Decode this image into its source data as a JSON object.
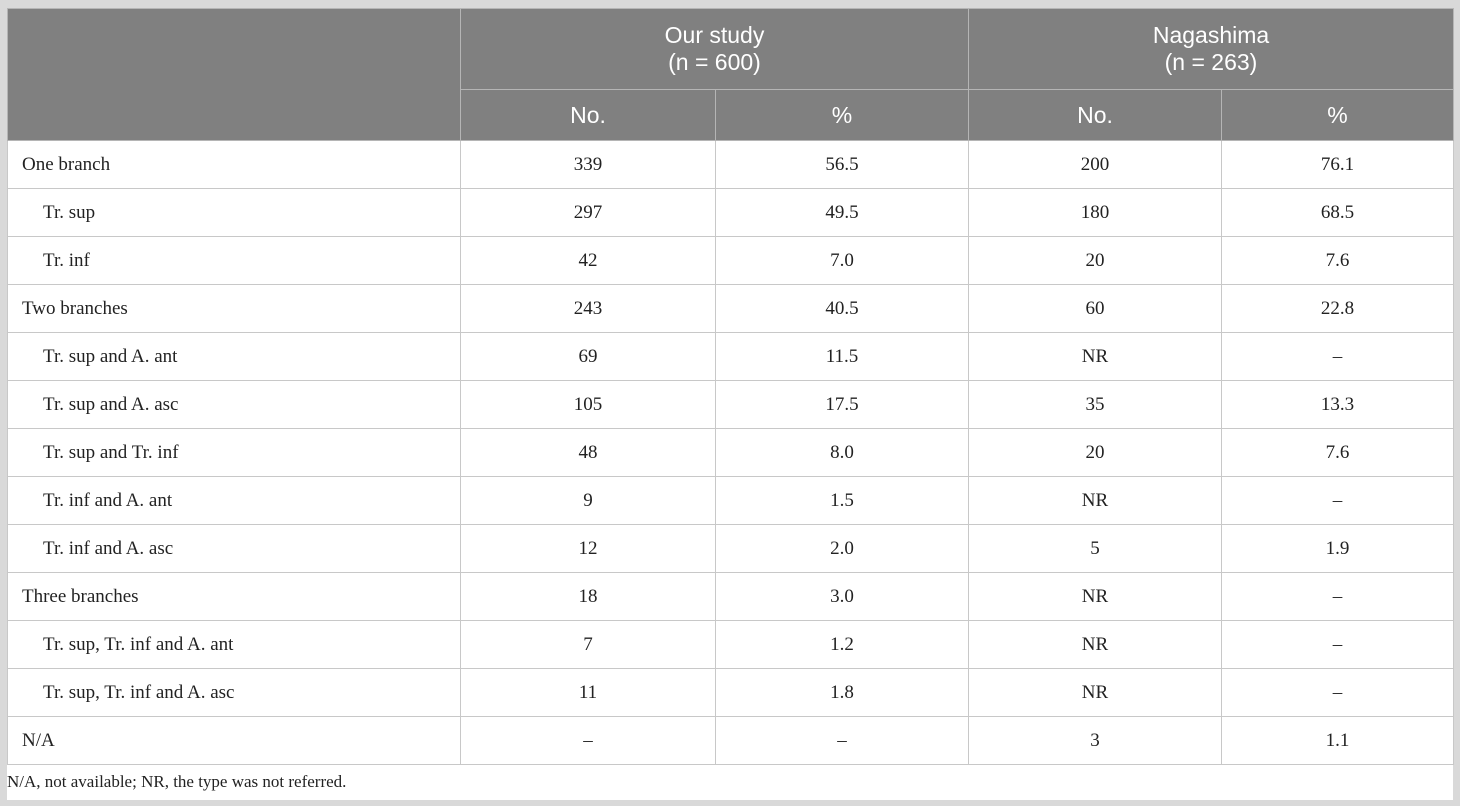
{
  "table": {
    "groups": [
      {
        "name": "Our study",
        "n": "(n = 600)"
      },
      {
        "name": "Nagashima",
        "n": "(n = 263)"
      }
    ],
    "subheaders": [
      "No.",
      "%",
      "No.",
      "%"
    ],
    "rows": [
      {
        "label": "One branch",
        "indent": false,
        "cells": [
          "339",
          "56.5",
          "200",
          "76.1"
        ]
      },
      {
        "label": "Tr. sup",
        "indent": true,
        "cells": [
          "297",
          "49.5",
          "180",
          "68.5"
        ]
      },
      {
        "label": "Tr. inf",
        "indent": true,
        "cells": [
          "42",
          "7.0",
          "20",
          "7.6"
        ]
      },
      {
        "label": "Two branches",
        "indent": false,
        "cells": [
          "243",
          "40.5",
          "60",
          "22.8"
        ]
      },
      {
        "label": "Tr. sup and A. ant",
        "indent": true,
        "cells": [
          "69",
          "11.5",
          "NR",
          "–"
        ]
      },
      {
        "label": "Tr. sup and A. asc",
        "indent": true,
        "cells": [
          "105",
          "17.5",
          "35",
          "13.3"
        ]
      },
      {
        "label": "Tr. sup and Tr. inf",
        "indent": true,
        "cells": [
          "48",
          "8.0",
          "20",
          "7.6"
        ]
      },
      {
        "label": "Tr. inf and A. ant",
        "indent": true,
        "cells": [
          "9",
          "1.5",
          "NR",
          "–"
        ]
      },
      {
        "label": "Tr. inf and A. asc",
        "indent": true,
        "cells": [
          "12",
          "2.0",
          "5",
          "1.9"
        ]
      },
      {
        "label": "Three branches",
        "indent": false,
        "cells": [
          "18",
          "3.0",
          "NR",
          "–"
        ]
      },
      {
        "label": "Tr. sup, Tr. inf and A. ant",
        "indent": true,
        "cells": [
          "7",
          "1.2",
          "NR",
          "–"
        ]
      },
      {
        "label": "Tr. sup, Tr. inf and A. asc",
        "indent": true,
        "cells": [
          "11",
          "1.8",
          "NR",
          "–"
        ]
      },
      {
        "label": "N/A",
        "indent": false,
        "cells": [
          "–",
          "–",
          "3",
          "1.1"
        ]
      }
    ],
    "footnote": "N/A, not available; NR, the type was not referred."
  }
}
